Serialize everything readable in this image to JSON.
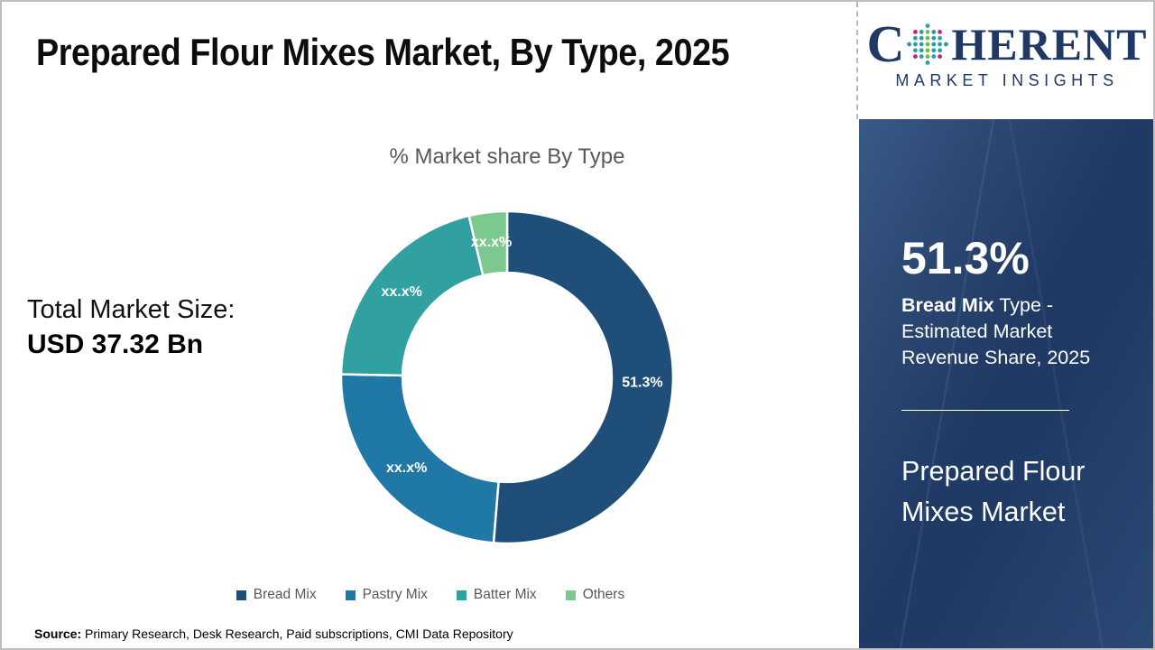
{
  "header": {
    "title": "Prepared Flour Mixes Market, By Type, 2025"
  },
  "brand": {
    "word_start": "C",
    "word_end": "HERENT",
    "subtitle": "MARKET INSIGHTS",
    "navy": "#1F3864",
    "dot_teal": "#2C9FA6",
    "dot_green": "#6FBE47",
    "dot_pink": "#C2247A"
  },
  "left_stat": {
    "label": "Total Market Size:",
    "value": "USD 37.32 Bn"
  },
  "chart_data": {
    "type": "pie",
    "title": "% Market share By Type",
    "categories": [
      "Bread Mix",
      "Pastry Mix",
      "Batter Mix",
      "Others"
    ],
    "values": [
      51.3,
      24.0,
      21.0,
      3.7
    ],
    "labels": [
      "51.3%",
      "xx.x%",
      "xx.x%",
      "xx.x%"
    ],
    "colors": [
      "#1F4E79",
      "#1F78A6",
      "#31A0A0",
      "#7CC98F"
    ],
    "donut_hole": 0.63,
    "start_angle_deg": 0,
    "direction": "clockwise",
    "legend_position": "bottom",
    "total_label": "Total Market Size: USD 37.32 Bn"
  },
  "sidebar": {
    "background": "#1F3A64",
    "highlight_value": "51.3%",
    "highlight_label_bold": "Bread Mix",
    "highlight_label_rest": " Type - Estimated Market Revenue Share, 2025",
    "panel_title": "Prepared Flour Mixes Market"
  },
  "footer": {
    "source_label": "Source:",
    "source_text": " Primary Research, Desk Research, Paid subscriptions, CMI Data Repository"
  }
}
